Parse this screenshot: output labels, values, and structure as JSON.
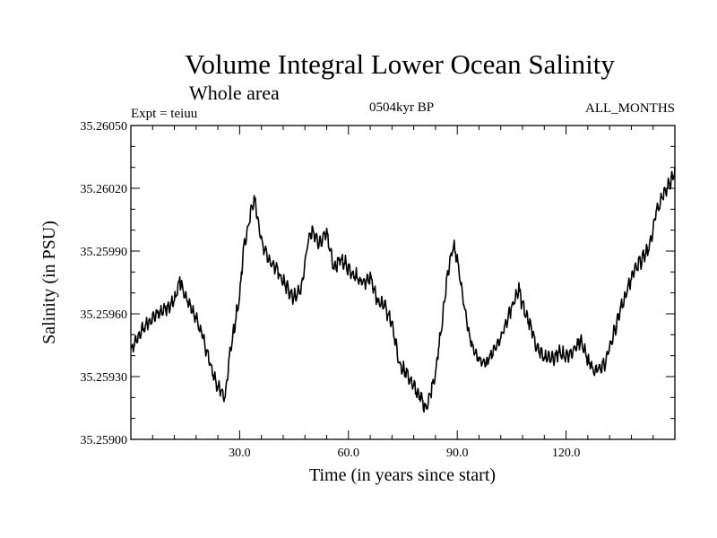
{
  "chart_data": {
    "type": "line",
    "title": "Volume Integral Lower Ocean Salinity",
    "subtitle": "Whole area",
    "experiment_label": "Expt = teiuu",
    "period_label": "0504kyr BP",
    "months_label": "ALL_MONTHS",
    "xlabel": "Time (in years since start)",
    "ylabel": "Salinity (in PSU)",
    "xlim": [
      0,
      150
    ],
    "ylim": [
      35.259,
      35.2605
    ],
    "x_ticks": [
      30,
      60,
      90,
      120
    ],
    "x_tick_labels": [
      "30.0",
      "60.0",
      "90.0",
      "120.0"
    ],
    "y_ticks": [
      35.259,
      35.2593,
      35.2596,
      35.2599,
      35.2602,
      35.2605
    ],
    "y_tick_labels": [
      "35.25900",
      "35.25930",
      "35.25960",
      "35.25990",
      "35.26020",
      "35.26050"
    ],
    "series": [
      {
        "name": "salinity",
        "x": [
          0,
          3,
          6,
          9,
          12,
          13.5,
          15,
          18,
          20,
          22,
          24,
          26,
          27,
          30,
          31,
          33,
          34,
          36,
          38,
          40,
          42,
          45,
          47,
          49,
          50,
          52,
          54,
          56,
          58,
          60,
          62,
          64,
          66,
          68,
          70,
          72,
          74,
          76,
          78,
          80,
          81,
          82,
          84,
          86,
          87,
          88,
          89,
          90,
          92,
          94,
          96,
          98,
          100,
          102,
          104,
          106,
          107,
          108,
          110,
          112,
          114,
          116,
          118,
          120,
          122,
          124,
          126,
          128,
          130,
          131,
          133,
          135,
          137,
          139,
          141,
          143,
          145,
          147,
          149,
          150
        ],
        "y": [
          35.25942,
          35.25952,
          35.25958,
          35.25962,
          35.25966,
          35.25976,
          35.25968,
          35.25958,
          35.25948,
          35.25935,
          35.25925,
          35.2592,
          35.25938,
          35.25968,
          35.2599,
          35.26008,
          35.26015,
          35.25995,
          35.25985,
          35.25982,
          35.25975,
          35.25968,
          35.25972,
          35.25996,
          35.25999,
          35.25994,
          35.25998,
          35.25982,
          35.25986,
          35.25982,
          35.25978,
          35.25975,
          35.25978,
          35.25966,
          35.25964,
          35.25955,
          35.25936,
          35.25932,
          35.25925,
          35.2592,
          35.25915,
          35.25918,
          35.25932,
          35.25958,
          35.25975,
          35.25986,
          35.25992,
          35.25986,
          35.25962,
          35.25945,
          35.25938,
          35.25936,
          35.25942,
          35.25948,
          35.25958,
          35.25968,
          35.25972,
          35.25964,
          35.25955,
          35.25944,
          35.25939,
          35.25938,
          35.25942,
          35.2594,
          35.25942,
          35.25948,
          35.25938,
          35.25932,
          35.25936,
          35.25938,
          35.2595,
          35.25962,
          35.25972,
          35.25982,
          35.25986,
          35.25992,
          35.2601,
          35.26018,
          35.26024,
          35.26027
        ]
      }
    ]
  }
}
